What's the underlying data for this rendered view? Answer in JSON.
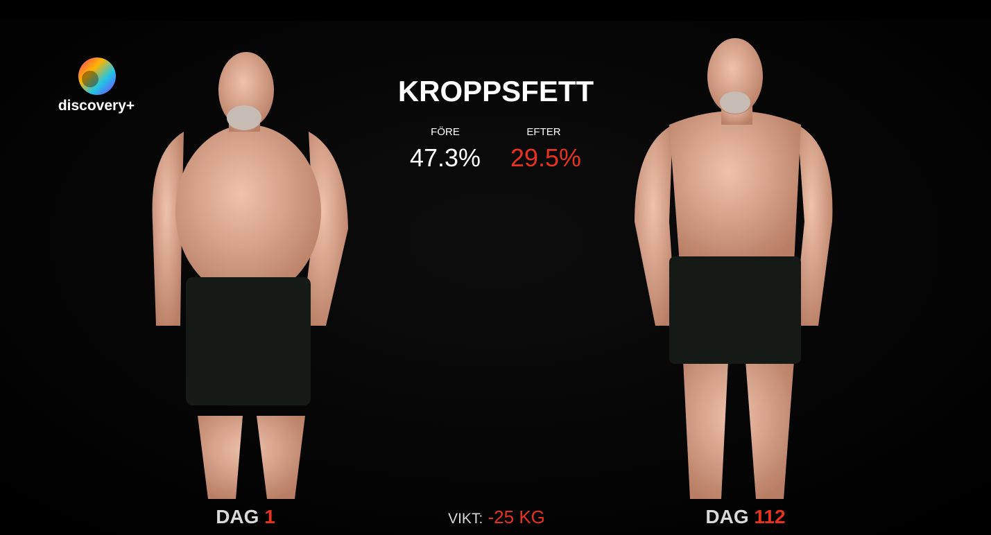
{
  "logo": "discovery+",
  "title": "KROPPSFETT",
  "stats": [
    {
      "label": "FÖRE",
      "value": "47.3%"
    },
    {
      "label": "EFTER",
      "value": "29.5%"
    }
  ],
  "panels": [
    {
      "label": "DAG",
      "day": "1"
    },
    {
      "label": "DAG",
      "day": "112"
    }
  ],
  "weight": {
    "label": "VIKT:",
    "value": "-25 KG"
  }
}
